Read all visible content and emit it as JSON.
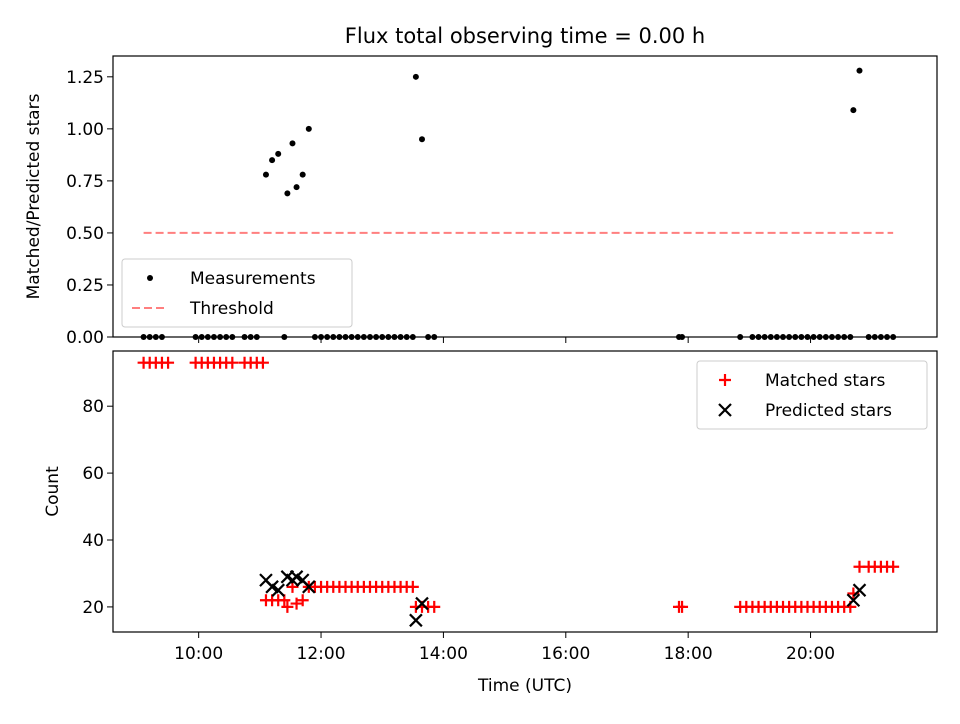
{
  "title": "Flux total observing time = 0.00 h",
  "chart_data": [
    {
      "type": "scatter",
      "ylabel": "Matched/Predicted stars",
      "xlabel": "",
      "ylim": [
        0.0,
        1.35
      ],
      "yticks": [
        "0.00",
        "0.25",
        "0.50",
        "0.75",
        "1.00",
        "1.25"
      ],
      "xlim": [
        "08:36",
        "22:04"
      ],
      "legend_position": "lower-left",
      "series": [
        {
          "name": "Measurements",
          "marker": "dot",
          "color": "#000000",
          "points": [
            [
              "11:06",
              0.78
            ],
            [
              "11:12",
              0.85
            ],
            [
              "11:18",
              0.88
            ],
            [
              "11:27",
              0.69
            ],
            [
              "11:32",
              0.93
            ],
            [
              "11:36",
              0.72
            ],
            [
              "11:42",
              0.78
            ],
            [
              "11:48",
              1.0
            ],
            [
              "13:33",
              1.25
            ],
            [
              "13:39",
              0.95
            ],
            [
              "20:42",
              1.09
            ],
            [
              "20:48",
              1.28
            ],
            [
              "09:06",
              0.0
            ],
            [
              "09:12",
              0.0
            ],
            [
              "09:18",
              0.0
            ],
            [
              "09:24",
              0.0
            ],
            [
              "09:57",
              0.0
            ],
            [
              "10:03",
              0.0
            ],
            [
              "10:09",
              0.0
            ],
            [
              "10:15",
              0.0
            ],
            [
              "10:21",
              0.0
            ],
            [
              "10:27",
              0.0
            ],
            [
              "10:33",
              0.0
            ],
            [
              "10:45",
              0.0
            ],
            [
              "10:51",
              0.0
            ],
            [
              "10:57",
              0.0
            ],
            [
              "11:24",
              0.0
            ],
            [
              "11:54",
              0.0
            ],
            [
              "12:00",
              0.0
            ],
            [
              "12:06",
              0.0
            ],
            [
              "12:12",
              0.0
            ],
            [
              "12:18",
              0.0
            ],
            [
              "12:24",
              0.0
            ],
            [
              "12:30",
              0.0
            ],
            [
              "12:36",
              0.0
            ],
            [
              "12:42",
              0.0
            ],
            [
              "12:48",
              0.0
            ],
            [
              "12:54",
              0.0
            ],
            [
              "13:00",
              0.0
            ],
            [
              "13:06",
              0.0
            ],
            [
              "13:12",
              0.0
            ],
            [
              "13:18",
              0.0
            ],
            [
              "13:24",
              0.0
            ],
            [
              "13:30",
              0.0
            ],
            [
              "13:45",
              0.0
            ],
            [
              "13:51",
              0.0
            ],
            [
              "17:51",
              0.0
            ],
            [
              "17:54",
              0.0
            ],
            [
              "18:51",
              0.0
            ],
            [
              "19:03",
              0.0
            ],
            [
              "19:09",
              0.0
            ],
            [
              "19:15",
              0.0
            ],
            [
              "19:21",
              0.0
            ],
            [
              "19:27",
              0.0
            ],
            [
              "19:33",
              0.0
            ],
            [
              "19:39",
              0.0
            ],
            [
              "19:45",
              0.0
            ],
            [
              "19:51",
              0.0
            ],
            [
              "19:57",
              0.0
            ],
            [
              "20:03",
              0.0
            ],
            [
              "20:09",
              0.0
            ],
            [
              "20:15",
              0.0
            ],
            [
              "20:21",
              0.0
            ],
            [
              "20:27",
              0.0
            ],
            [
              "20:33",
              0.0
            ],
            [
              "20:39",
              0.0
            ],
            [
              "20:57",
              0.0
            ],
            [
              "21:03",
              0.0
            ],
            [
              "21:09",
              0.0
            ],
            [
              "21:15",
              0.0
            ],
            [
              "21:21",
              0.0
            ]
          ]
        },
        {
          "name": "Threshold",
          "style": "dashed-line",
          "color": "#ff7f7f",
          "points": [
            [
              "09:06",
              0.5
            ],
            [
              "21:21",
              0.5
            ]
          ]
        }
      ]
    },
    {
      "type": "scatter",
      "ylabel": "Count",
      "xlabel": "Time (UTC)",
      "ylim": [
        12.5,
        96.5
      ],
      "yticks": [
        "20",
        "40",
        "60",
        "80"
      ],
      "xlim": [
        "08:36",
        "22:04"
      ],
      "xticks": [
        "10:00",
        "12:00",
        "14:00",
        "16:00",
        "18:00",
        "20:00"
      ],
      "legend_position": "upper-right",
      "series": [
        {
          "name": "Matched stars",
          "marker": "plus",
          "color": "#ff0000",
          "points": [
            [
              "09:06",
              93
            ],
            [
              "09:12",
              93
            ],
            [
              "09:18",
              93
            ],
            [
              "09:24",
              93
            ],
            [
              "09:30",
              93
            ],
            [
              "09:57",
              93
            ],
            [
              "10:03",
              93
            ],
            [
              "10:09",
              93
            ],
            [
              "10:15",
              93
            ],
            [
              "10:21",
              93
            ],
            [
              "10:27",
              93
            ],
            [
              "10:33",
              93
            ],
            [
              "10:45",
              93
            ],
            [
              "10:51",
              93
            ],
            [
              "10:57",
              93
            ],
            [
              "11:03",
              93
            ],
            [
              "11:06",
              22
            ],
            [
              "11:12",
              22
            ],
            [
              "11:18",
              22
            ],
            [
              "11:24",
              22
            ],
            [
              "11:27",
              20
            ],
            [
              "11:32",
              26
            ],
            [
              "11:36",
              21
            ],
            [
              "11:42",
              22
            ],
            [
              "11:48",
              26
            ],
            [
              "11:54",
              26
            ],
            [
              "12:00",
              26
            ],
            [
              "12:06",
              26
            ],
            [
              "12:12",
              26
            ],
            [
              "12:18",
              26
            ],
            [
              "12:24",
              26
            ],
            [
              "12:30",
              26
            ],
            [
              "12:36",
              26
            ],
            [
              "12:42",
              26
            ],
            [
              "12:48",
              26
            ],
            [
              "12:54",
              26
            ],
            [
              "13:00",
              26
            ],
            [
              "13:06",
              26
            ],
            [
              "13:12",
              26
            ],
            [
              "13:18",
              26
            ],
            [
              "13:24",
              26
            ],
            [
              "13:30",
              26
            ],
            [
              "13:33",
              20
            ],
            [
              "13:39",
              20
            ],
            [
              "13:45",
              20
            ],
            [
              "13:51",
              20
            ],
            [
              "17:51",
              20
            ],
            [
              "17:54",
              20
            ],
            [
              "18:51",
              20
            ],
            [
              "18:57",
              20
            ],
            [
              "19:03",
              20
            ],
            [
              "19:09",
              20
            ],
            [
              "19:15",
              20
            ],
            [
              "19:21",
              20
            ],
            [
              "19:27",
              20
            ],
            [
              "19:33",
              20
            ],
            [
              "19:39",
              20
            ],
            [
              "19:45",
              20
            ],
            [
              "19:51",
              20
            ],
            [
              "19:57",
              20
            ],
            [
              "20:03",
              20
            ],
            [
              "20:09",
              20
            ],
            [
              "20:15",
              20
            ],
            [
              "20:21",
              20
            ],
            [
              "20:27",
              20
            ],
            [
              "20:33",
              20
            ],
            [
              "20:39",
              20
            ],
            [
              "20:42",
              24
            ],
            [
              "20:48",
              32
            ],
            [
              "20:57",
              32
            ],
            [
              "21:03",
              32
            ],
            [
              "21:09",
              32
            ],
            [
              "21:15",
              32
            ],
            [
              "21:21",
              32
            ]
          ]
        },
        {
          "name": "Predicted stars",
          "marker": "x",
          "color": "#000000",
          "points": [
            [
              "11:06",
              28
            ],
            [
              "11:12",
              26
            ],
            [
              "11:18",
              25
            ],
            [
              "11:27",
              29
            ],
            [
              "11:32",
              28
            ],
            [
              "11:36",
              29
            ],
            [
              "11:42",
              28
            ],
            [
              "11:48",
              26
            ],
            [
              "13:33",
              16
            ],
            [
              "13:39",
              21
            ],
            [
              "20:42",
              22
            ],
            [
              "20:48",
              25
            ]
          ]
        }
      ]
    }
  ]
}
